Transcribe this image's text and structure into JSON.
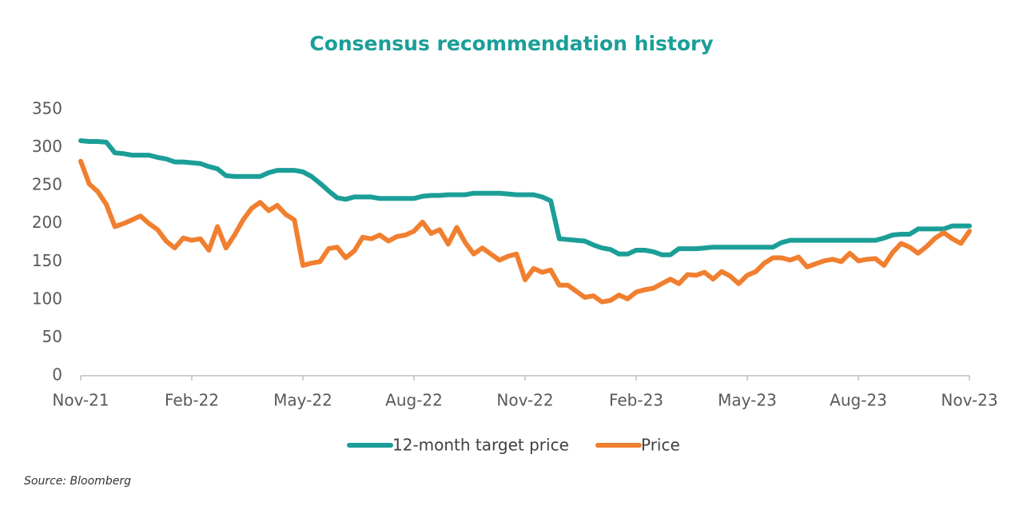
{
  "chart_data": {
    "type": "line",
    "title": "Consensus recommendation history",
    "source": "Source: Bloomberg",
    "categories": [
      "Nov-21",
      null,
      null,
      null,
      null,
      null,
      null,
      null,
      null,
      null,
      null,
      null,
      null,
      "Feb-22",
      null,
      null,
      null,
      null,
      null,
      null,
      null,
      null,
      null,
      null,
      null,
      null,
      "May-22",
      null,
      null,
      null,
      null,
      null,
      null,
      null,
      null,
      null,
      null,
      null,
      null,
      "Aug-22",
      null,
      null,
      null,
      null,
      null,
      null,
      null,
      null,
      null,
      null,
      null,
      null,
      "Nov-22",
      null,
      null,
      null,
      null,
      null,
      null,
      null,
      null,
      null,
      null,
      null,
      null,
      "Feb-23",
      null,
      null,
      null,
      null,
      null,
      null,
      null,
      null,
      null,
      null,
      null,
      null,
      "May-23",
      null,
      null,
      null,
      null,
      null,
      null,
      null,
      null,
      null,
      null,
      null,
      null,
      "Aug-23",
      null,
      null,
      null,
      null,
      null,
      null,
      null,
      null,
      null,
      null,
      null,
      null,
      "Nov-23"
    ],
    "series": [
      {
        "name": "12-month target price",
        "color": "#1b9e98",
        "values": [
          309,
          308,
          308,
          307,
          293,
          292,
          290,
          290,
          290,
          287,
          285,
          281,
          281,
          280,
          279,
          275,
          272,
          263,
          262,
          262,
          262,
          262,
          267,
          270,
          270,
          270,
          268,
          262,
          253,
          243,
          234,
          232,
          235,
          235,
          235,
          233,
          233,
          233,
          233,
          233,
          236,
          237,
          237,
          238,
          238,
          238,
          240,
          240,
          240,
          240,
          239,
          238,
          238,
          238,
          235,
          230,
          180,
          179,
          178,
          177,
          172,
          168,
          166,
          160,
          160,
          165,
          165,
          163,
          159,
          159,
          167,
          167,
          167,
          168,
          169,
          169,
          169,
          169,
          169,
          169,
          169,
          169,
          175,
          178,
          178,
          178,
          178,
          178,
          178,
          178,
          178,
          178,
          178,
          178,
          181,
          185,
          186,
          186,
          193,
          193,
          193,
          193,
          197,
          197,
          197
        ]
      },
      {
        "name": "Price",
        "color": "#f07f2f",
        "values": [
          282,
          252,
          242,
          225,
          196,
          200,
          205,
          210,
          200,
          192,
          177,
          168,
          181,
          178,
          180,
          165,
          196,
          168,
          185,
          205,
          220,
          228,
          217,
          224,
          212,
          205,
          145,
          148,
          150,
          167,
          169,
          155,
          164,
          182,
          180,
          185,
          177,
          183,
          185,
          190,
          202,
          187,
          192,
          173,
          195,
          175,
          160,
          168,
          160,
          152,
          157,
          160,
          126,
          141,
          136,
          139,
          119,
          119,
          111,
          103,
          105,
          97,
          99,
          106,
          101,
          110,
          113,
          115,
          121,
          127,
          121,
          133,
          132,
          136,
          127,
          137,
          131,
          121,
          132,
          137,
          148,
          155,
          155,
          152,
          156,
          143,
          147,
          151,
          153,
          150,
          161,
          151,
          153,
          154,
          145,
          162,
          174,
          169,
          161,
          170,
          181,
          188,
          180,
          174,
          190
        ]
      }
    ],
    "ylim": [
      0,
      350
    ],
    "yticks": [
      0,
      50,
      100,
      150,
      200,
      250,
      300,
      350
    ],
    "grid": false,
    "legend": "bottom"
  }
}
